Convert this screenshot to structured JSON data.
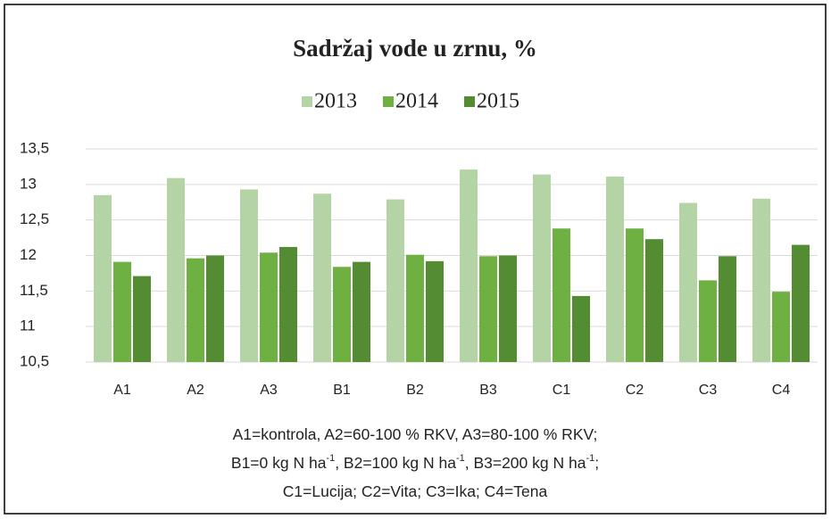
{
  "chart_data": {
    "type": "bar",
    "title": "Sadržaj vode u zrnu, %",
    "categories": [
      "A1",
      "A2",
      "A3",
      "B1",
      "B2",
      "B3",
      "C1",
      "C2",
      "C3",
      "C4"
    ],
    "series": [
      {
        "name": "2013",
        "color": "#b5d4a5",
        "values": [
          12.85,
          13.09,
          12.93,
          12.87,
          12.79,
          13.21,
          13.14,
          13.11,
          12.74,
          12.8
        ]
      },
      {
        "name": "2014",
        "color": "#6fb043",
        "values": [
          11.91,
          11.96,
          12.04,
          11.84,
          12.01,
          11.99,
          12.38,
          12.38,
          11.65,
          11.49
        ]
      },
      {
        "name": "2015",
        "color": "#548c33",
        "values": [
          11.71,
          12.0,
          12.12,
          11.91,
          11.92,
          12.0,
          11.43,
          12.23,
          11.99,
          12.15
        ]
      }
    ],
    "ylim": [
      10.5,
      13.5
    ],
    "yticks": [
      {
        "value": 10.5,
        "label": "10,5"
      },
      11,
      {
        "value": 11.5,
        "label": "11,5"
      },
      12,
      {
        "value": 12.5,
        "label": "12,5"
      },
      13,
      {
        "value": 13.5,
        "label": "13,5"
      }
    ],
    "grid": true,
    "legend": "top",
    "caption": [
      [
        "A1=kontrola, A2=60-100 % RKV, A3=80-100 % RKV;"
      ],
      [
        "B1=0 kg N ha",
        "-1",
        ", B2=100 kg N ha",
        "-1",
        ", B3=200 kg N ha",
        "-1",
        ";"
      ],
      [
        "C1=Lucija;  C2=Vita; C3=Ika; C4=Tena"
      ]
    ]
  }
}
